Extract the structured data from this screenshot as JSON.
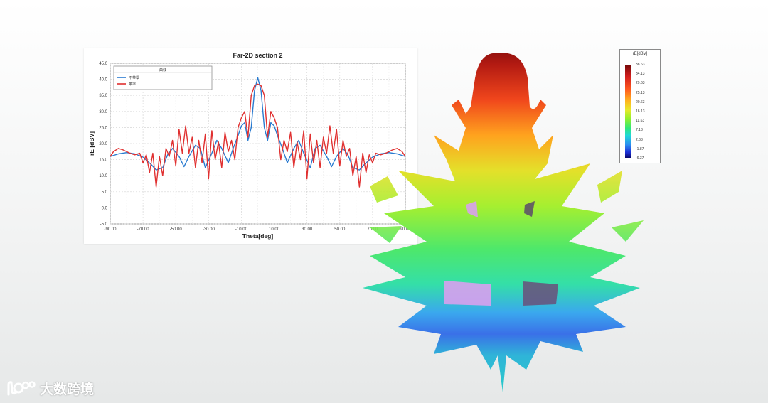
{
  "chart_data": {
    "type": "line",
    "title": "Far-2D section 2",
    "xlabel": "Theta[deg]",
    "ylabel": "rE [dBV]",
    "xlim": [
      -90,
      90
    ],
    "ylim": [
      -5,
      45
    ],
    "xticks": [
      -90,
      -70,
      -50,
      -30,
      -10,
      10,
      30,
      50,
      70,
      90
    ],
    "xtick_labels": [
      "-90.00",
      "-70.00",
      "-50.00",
      "-30.00",
      "-10.00",
      "10.00",
      "30.00",
      "50.00",
      "70.00",
      "90.00"
    ],
    "yticks": [
      -5,
      0,
      5,
      10,
      15,
      20,
      25,
      30,
      35,
      40,
      45
    ],
    "ytick_labels": [
      "-5.0",
      "0.0",
      "5.0",
      "10.0",
      "15.0",
      "20.0",
      "25.0",
      "30.0",
      "35.0",
      "40.0",
      "45.0"
    ],
    "grid": true,
    "legend": {
      "title": "曲线",
      "placement": "top-left",
      "entries": [
        "不带罩",
        "带罩"
      ]
    },
    "series": [
      {
        "name": "不带罩",
        "color": "#2a7bd0",
        "x": [
          -90,
          -85,
          -80,
          -75,
          -70,
          -65,
          -62,
          -58,
          -55,
          -52,
          -48,
          -45,
          -42,
          -38,
          -35,
          -32,
          -28,
          -25,
          -22,
          -18,
          -15,
          -12,
          -10,
          -8,
          -6,
          -4,
          -2,
          0,
          2,
          4,
          6,
          8,
          10,
          12,
          15,
          18,
          22,
          25,
          28,
          32,
          35,
          38,
          42,
          45,
          48,
          52,
          55,
          58,
          62,
          65,
          70,
          75,
          80,
          85,
          90
        ],
        "values": [
          16,
          16.8,
          17.2,
          16.8,
          15.8,
          13.5,
          11.8,
          12.5,
          16.5,
          18.5,
          16,
          12.8,
          16,
          19.5,
          18.5,
          12.5,
          17,
          21,
          18.5,
          14,
          18.5,
          22.5,
          25.5,
          26.5,
          21,
          25,
          36.5,
          40.5,
          36.5,
          25,
          21,
          26.5,
          25.5,
          22.5,
          18.5,
          14,
          18.5,
          21,
          17,
          12.5,
          18.5,
          19.5,
          16,
          12.8,
          16,
          18.5,
          16.5,
          12.5,
          11.8,
          13.5,
          15.8,
          16.8,
          17.2,
          16.8,
          16
        ]
      },
      {
        "name": "带罩",
        "color": "#e03030",
        "x": [
          -90,
          -88,
          -85,
          -82,
          -78,
          -75,
          -72,
          -70,
          -68,
          -66,
          -64,
          -62,
          -60,
          -58,
          -56,
          -54,
          -52,
          -50,
          -48,
          -46,
          -44,
          -42,
          -40,
          -38,
          -36,
          -34,
          -32,
          -30,
          -28,
          -26,
          -24,
          -22,
          -20,
          -18,
          -16,
          -14,
          -12,
          -10,
          -8,
          -6,
          -4,
          -2,
          0,
          2,
          4,
          6,
          8,
          10,
          12,
          14,
          16,
          18,
          20,
          22,
          24,
          26,
          28,
          30,
          32,
          34,
          36,
          38,
          40,
          42,
          44,
          46,
          48,
          50,
          52,
          54,
          56,
          58,
          60,
          62,
          64,
          66,
          68,
          70,
          72,
          75,
          78,
          82,
          85,
          88,
          90
        ],
        "values": [
          16,
          17.5,
          18.5,
          18,
          17,
          16.5,
          17,
          14,
          16.5,
          11,
          17,
          6.5,
          16,
          10,
          18.5,
          16,
          21,
          13,
          24.5,
          17,
          25.5,
          17,
          22,
          12.5,
          21,
          14,
          23,
          9,
          24,
          15,
          20.5,
          12.5,
          23.5,
          17.5,
          21,
          15,
          25,
          28,
          30,
          22,
          35,
          38,
          38.5,
          38,
          35,
          22,
          30,
          28,
          25,
          15,
          21,
          17.5,
          23.5,
          12.5,
          20.5,
          15,
          24,
          9,
          23,
          14,
          21,
          12.5,
          22,
          17,
          25.5,
          17,
          24.5,
          13,
          21,
          16,
          18.5,
          10,
          16,
          6.5,
          17,
          11,
          16.5,
          14,
          17,
          16.5,
          17,
          18,
          18.5,
          17.5,
          16
        ]
      }
    ]
  },
  "colorbar": {
    "title": "rE[dBV]",
    "ticks": [
      "38.63",
      "34.13",
      "29.63",
      "25.13",
      "20.63",
      "16.13",
      "11.63",
      "7.13",
      "2.63",
      "-1.87",
      "-6.37"
    ]
  },
  "logo": {
    "text": "大数跨境"
  }
}
